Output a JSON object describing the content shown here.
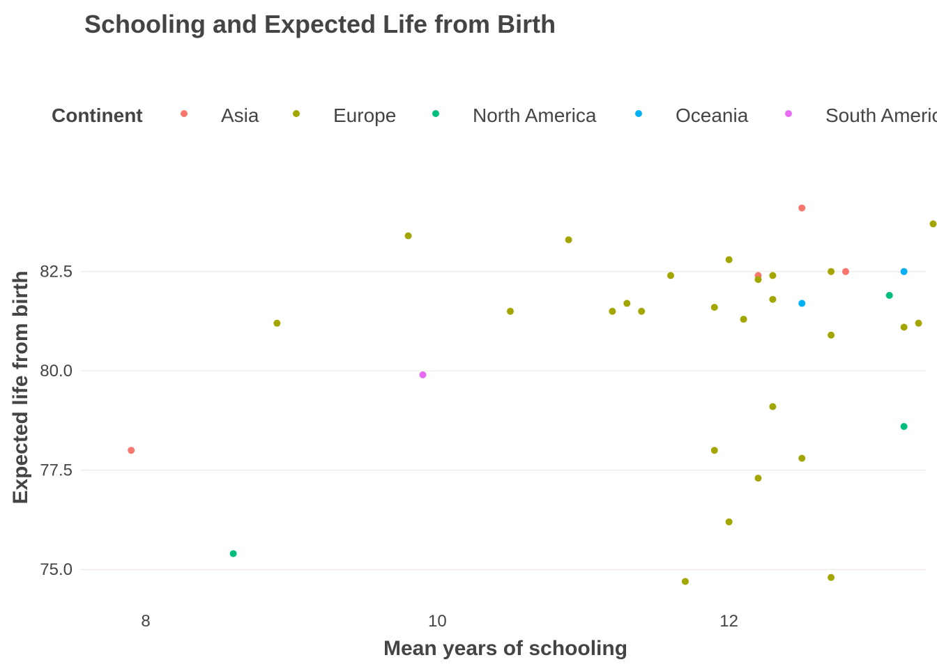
{
  "chart_data": {
    "type": "scatter",
    "title": "Schooling and Expected Life from Birth",
    "xlabel": "Mean years of schooling",
    "ylabel": "Expected life from birth",
    "xlim": [
      7.55,
      13.35
    ],
    "ylim": [
      74.25,
      84.95
    ],
    "x_ticks": [
      8,
      10,
      12
    ],
    "y_ticks": [
      75.0,
      77.5,
      80.0,
      82.5
    ],
    "grid": "horizontal major lines",
    "legend": {
      "title": "Continent",
      "position": "top"
    },
    "series": [
      {
        "name": "Asia",
        "color": "#F8766D",
        "points": [
          [
            7.9,
            78.0
          ],
          [
            12.2,
            82.4
          ],
          [
            12.5,
            84.1
          ],
          [
            12.8,
            82.5
          ]
        ]
      },
      {
        "name": "Europe",
        "color": "#A3A500",
        "points": [
          [
            8.9,
            81.2
          ],
          [
            9.8,
            83.4
          ],
          [
            10.5,
            81.5
          ],
          [
            10.9,
            83.3
          ],
          [
            11.2,
            81.5
          ],
          [
            11.3,
            81.7
          ],
          [
            11.4,
            81.5
          ],
          [
            11.6,
            82.4
          ],
          [
            11.7,
            74.7
          ],
          [
            11.9,
            81.6
          ],
          [
            11.9,
            78.0
          ],
          [
            12.0,
            82.8
          ],
          [
            12.0,
            76.2
          ],
          [
            12.1,
            81.3
          ],
          [
            12.2,
            82.3
          ],
          [
            12.2,
            77.3
          ],
          [
            12.3,
            82.4
          ],
          [
            12.3,
            81.8
          ],
          [
            12.3,
            79.1
          ],
          [
            12.5,
            77.8
          ],
          [
            12.7,
            82.5
          ],
          [
            12.7,
            80.9
          ],
          [
            12.7,
            74.8
          ],
          [
            13.2,
            81.1
          ],
          [
            13.3,
            81.2
          ],
          [
            13.4,
            83.7
          ]
        ]
      },
      {
        "name": "North America",
        "color": "#00BF7D",
        "points": [
          [
            8.6,
            75.4
          ],
          [
            13.1,
            81.9
          ],
          [
            13.2,
            78.6
          ]
        ]
      },
      {
        "name": "Oceania",
        "color": "#00B0F6",
        "points": [
          [
            12.5,
            81.7
          ],
          [
            13.2,
            82.5
          ]
        ]
      },
      {
        "name": "South America",
        "color": "#E76BF3",
        "points": [
          [
            9.9,
            79.9
          ]
        ]
      }
    ]
  }
}
